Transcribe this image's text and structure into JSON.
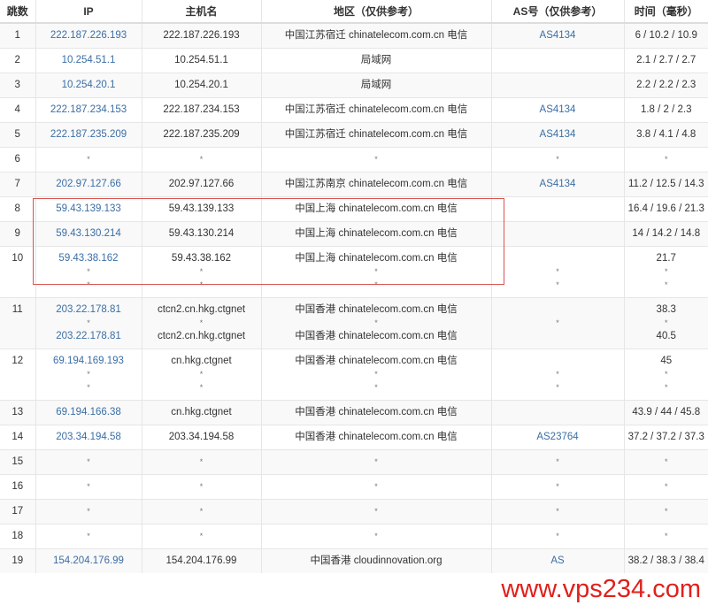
{
  "headers": [
    "跳数",
    "IP",
    "主机名",
    "地区（仅供参考）",
    "AS号（仅供参考）",
    "时间（毫秒）"
  ],
  "rows": [
    {
      "hop": "1",
      "lines": [
        {
          "ip": "222.187.226.193",
          "host": "222.187.226.193",
          "region": "中国江苏宿迁 chinatelecom.com.cn 电信",
          "as": "AS4134",
          "time": "6 / 10.2 / 10.9"
        }
      ]
    },
    {
      "hop": "2",
      "lines": [
        {
          "ip": "10.254.51.1",
          "host": "10.254.51.1",
          "region": "局域网",
          "as": "",
          "time": "2.1 / 2.7 / 2.7"
        }
      ]
    },
    {
      "hop": "3",
      "lines": [
        {
          "ip": "10.254.20.1",
          "host": "10.254.20.1",
          "region": "局域网",
          "as": "",
          "time": "2.2 / 2.2 / 2.3"
        }
      ]
    },
    {
      "hop": "4",
      "lines": [
        {
          "ip": "222.187.234.153",
          "host": "222.187.234.153",
          "region": "中国江苏宿迁 chinatelecom.com.cn 电信",
          "as": "AS4134",
          "time": "1.8 / 2 / 2.3"
        }
      ]
    },
    {
      "hop": "5",
      "lines": [
        {
          "ip": "222.187.235.209",
          "host": "222.187.235.209",
          "region": "中国江苏宿迁 chinatelecom.com.cn 电信",
          "as": "AS4134",
          "time": "3.8 / 4.1 / 4.8"
        }
      ]
    },
    {
      "hop": "6",
      "lines": [
        {
          "ip": "*",
          "host": "*",
          "region": "*",
          "as": "*",
          "time": "*"
        }
      ]
    },
    {
      "hop": "7",
      "lines": [
        {
          "ip": "202.97.127.66",
          "host": "202.97.127.66",
          "region": "中国江苏南京 chinatelecom.com.cn 电信",
          "as": "AS4134",
          "time": "11.2 / 12.5 / 14.3"
        }
      ]
    },
    {
      "hop": "8",
      "lines": [
        {
          "ip": "59.43.139.133",
          "host": "59.43.139.133",
          "region": "中国上海 chinatelecom.com.cn 电信",
          "as": "",
          "time": "16.4 / 19.6 / 21.3"
        }
      ]
    },
    {
      "hop": "9",
      "lines": [
        {
          "ip": "59.43.130.214",
          "host": "59.43.130.214",
          "region": "中国上海 chinatelecom.com.cn 电信",
          "as": "",
          "time": "14 / 14.2 / 14.8"
        }
      ]
    },
    {
      "hop": "10",
      "lines": [
        {
          "ip": "59.43.38.162",
          "host": "59.43.38.162",
          "region": "中国上海 chinatelecom.com.cn 电信",
          "as": "",
          "time": "21.7"
        },
        {
          "ip": "*",
          "host": "*",
          "region": "*",
          "as": "*",
          "time": "*"
        },
        {
          "ip": "*",
          "host": "*",
          "region": "*",
          "as": "*",
          "time": "*"
        }
      ]
    },
    {
      "hop": "11",
      "lines": [
        {
          "ip": "203.22.178.81",
          "host": "ctcn2.cn.hkg.ctgnet",
          "region": "中国香港 chinatelecom.com.cn 电信",
          "as": "",
          "time": "38.3"
        },
        {
          "ip": "*",
          "host": "*",
          "region": "*",
          "as": "*",
          "time": "*"
        },
        {
          "ip": "203.22.178.81",
          "host": "ctcn2.cn.hkg.ctgnet",
          "region": "中国香港 chinatelecom.com.cn 电信",
          "as": "",
          "time": "40.5"
        }
      ]
    },
    {
      "hop": "12",
      "lines": [
        {
          "ip": "69.194.169.193",
          "host": "cn.hkg.ctgnet",
          "region": "中国香港 chinatelecom.com.cn 电信",
          "as": "",
          "time": "45"
        },
        {
          "ip": "*",
          "host": "*",
          "region": "*",
          "as": "*",
          "time": "*"
        },
        {
          "ip": "*",
          "host": "*",
          "region": "*",
          "as": "*",
          "time": "*"
        }
      ]
    },
    {
      "hop": "13",
      "lines": [
        {
          "ip": "69.194.166.38",
          "host": "cn.hkg.ctgnet",
          "region": "中国香港 chinatelecom.com.cn 电信",
          "as": "",
          "time": "43.9 / 44 / 45.8"
        }
      ]
    },
    {
      "hop": "14",
      "lines": [
        {
          "ip": "203.34.194.58",
          "host": "203.34.194.58",
          "region": "中国香港 chinatelecom.com.cn 电信",
          "as": "AS23764",
          "time": "37.2 / 37.2 / 37.3"
        }
      ]
    },
    {
      "hop": "15",
      "lines": [
        {
          "ip": "*",
          "host": "*",
          "region": "*",
          "as": "*",
          "time": "*"
        }
      ]
    },
    {
      "hop": "16",
      "lines": [
        {
          "ip": "*",
          "host": "*",
          "region": "*",
          "as": "*",
          "time": "*"
        }
      ]
    },
    {
      "hop": "17",
      "lines": [
        {
          "ip": "*",
          "host": "*",
          "region": "*",
          "as": "*",
          "time": "*"
        }
      ]
    },
    {
      "hop": "18",
      "lines": [
        {
          "ip": "*",
          "host": "*",
          "region": "*",
          "as": "*",
          "time": "*"
        }
      ]
    },
    {
      "hop": "19",
      "lines": [
        {
          "ip": "154.204.176.99",
          "host": "154.204.176.99",
          "region": "中国香港 cloudinnovation.org",
          "as": "AS",
          "time": "38.2 / 38.3 / 38.4"
        }
      ]
    }
  ],
  "watermark": "www.vps234.com",
  "colors": {
    "link": "#3a6ea5",
    "highlight_box": "#d9534f",
    "watermark": "#e0201b",
    "stripe": "#f9f9f9"
  }
}
